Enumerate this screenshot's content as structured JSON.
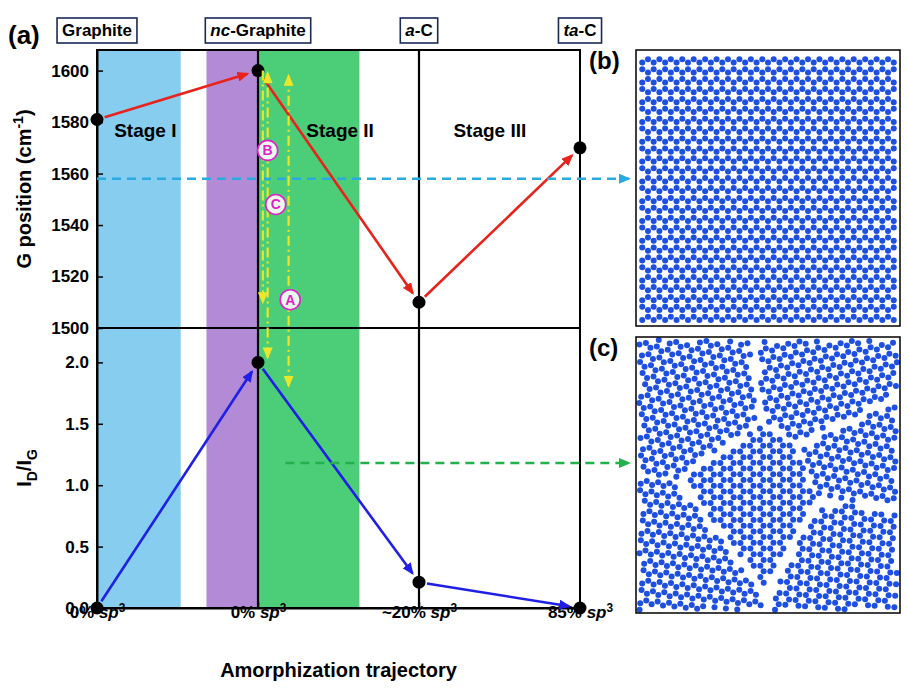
{
  "panels": [
    "(a)",
    "(b)",
    "(c)"
  ],
  "chart_data": [
    {
      "type": "line",
      "categories": [
        "Graphite",
        "nc-Graphite",
        "a-C",
        "ta-C"
      ],
      "y_label": "G position (cm-1)",
      "ylim": [
        1500,
        1608
      ],
      "yticks": [
        1500,
        1520,
        1540,
        1560,
        1580,
        1600
      ],
      "series": [
        {
          "color": "#e8231c",
          "marker": "circle",
          "values": [
            1581,
            1600,
            1510,
            1570
          ]
        }
      ],
      "annotations": [
        {
          "text": "Stage I",
          "x": 0.3,
          "y": 1576
        },
        {
          "text": "Stage II",
          "x": 1.51,
          "y": 1576
        },
        {
          "text": "Stage III",
          "x": 2.44,
          "y": 1576
        }
      ],
      "pointer": {
        "x": 0,
        "y": 1558,
        "color": "#29abe2",
        "line_style": "dashed"
      }
    },
    {
      "type": "line",
      "categories": [
        "0% sp3",
        "0% sp3",
        "~20% sp3",
        "85% sp3"
      ],
      "x_label": "Amorphization trajectory",
      "y_label": "ID/IG",
      "ylim": [
        0,
        2.28
      ],
      "yticks": [
        {
          "value": 0,
          "label": "0.0"
        },
        0.5,
        {
          "value": 1,
          "label": "1.0"
        },
        1.5,
        {
          "value": 2,
          "label": "2.0"
        }
      ],
      "series": [
        {
          "color": "#1f1fe6",
          "marker": "circle",
          "values": [
            0,
            2,
            0.21,
            0
          ]
        }
      ],
      "pointer": {
        "x": 1.17,
        "y": 1.18,
        "color": "#22b14c",
        "line_style": "dashed"
      }
    }
  ],
  "bands": [
    {
      "x": [
        0,
        0.52
      ],
      "color": "#86cdf0"
    },
    {
      "x": [
        0.68,
        1.0
      ],
      "color": "#b38ad6"
    },
    {
      "x": [
        1.0,
        1.63
      ],
      "color": "#4ccd78"
    }
  ],
  "trajectories": [
    {
      "label": "B",
      "x": 1.06,
      "g_end": 1599,
      "ratio_end": 2.04,
      "label_x": 1.06,
      "label_y": 1569,
      "color": "#ece62a",
      "line_style": "dashdot"
    },
    {
      "label": "C",
      "x": 1.19,
      "g_end": 1598,
      "ratio_end": 1.81,
      "label_x": 1.11,
      "label_y": 1548,
      "color": "#ece62a",
      "line_style": "dashdot"
    },
    {
      "label": "A",
      "x": 1.03,
      "g_start": 1600,
      "g_end": 1510,
      "label_x": 1.2,
      "label_y": 1511,
      "color": "#ece62a",
      "line_style": "dashdot"
    }
  ]
}
